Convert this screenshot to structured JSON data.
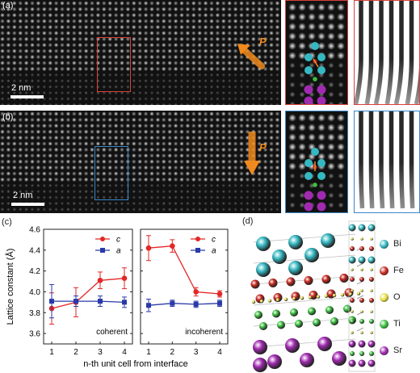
{
  "panels": {
    "a": {
      "label": "(a)",
      "scale_label": "2 nm",
      "polarization_label": "P"
    },
    "b": {
      "label": "(b)",
      "scale_label": "2 nm",
      "polarization_label": "P"
    },
    "c": {
      "label": "(c)"
    },
    "d": {
      "label": "(d)"
    }
  },
  "colors": {
    "red_box": "#d9413a",
    "blue_box": "#3a86c8",
    "series_c": "#e32626",
    "series_a": "#2a3aa8",
    "arrow": "#f08a1e",
    "Bi": "#35b8c2",
    "Fe": "#c8281e",
    "O": "#e8e04a",
    "Ti": "#3cc040",
    "Sr": "#a02ab0"
  },
  "legend_atoms": [
    {
      "name": "Bi",
      "color": "#35b8c2"
    },
    {
      "name": "Fe",
      "color": "#c8281e"
    },
    {
      "name": "O",
      "color": "#e8e04a"
    },
    {
      "name": "Ti",
      "color": "#3cc040"
    },
    {
      "name": "Sr",
      "color": "#a02ab0"
    }
  ],
  "chart_data": [
    {
      "type": "line",
      "annotation": "coherent",
      "ylabel": "Lattice constant (Å)",
      "xlabel": "n-th unit cell from interface",
      "x": [
        1,
        2,
        3,
        4
      ],
      "ylim": [
        3.5,
        4.6
      ],
      "yticks": [
        3.6,
        3.8,
        4.0,
        4.2,
        4.4,
        4.6
      ],
      "series": [
        {
          "name": "c",
          "values": [
            3.84,
            3.9,
            4.11,
            4.13
          ],
          "errors": [
            0.15,
            0.14,
            0.08,
            0.1
          ],
          "color": "#e32626",
          "marker": "circle"
        },
        {
          "name": "a",
          "values": [
            3.91,
            3.91,
            3.91,
            3.9
          ],
          "errors": [
            0.16,
            0.05,
            0.05,
            0.05
          ],
          "color": "#2a3aa8",
          "marker": "square"
        }
      ]
    },
    {
      "type": "line",
      "annotation": "incoherent",
      "x": [
        1,
        2,
        3,
        4
      ],
      "ylim": [
        3.5,
        4.6
      ],
      "series": [
        {
          "name": "c",
          "values": [
            4.42,
            4.44,
            4.0,
            3.98
          ],
          "errors": [
            0.12,
            0.06,
            0.04,
            0.03
          ],
          "color": "#e32626",
          "marker": "circle"
        },
        {
          "name": "a",
          "values": [
            3.87,
            3.89,
            3.88,
            3.89
          ],
          "errors": [
            0.06,
            0.03,
            0.03,
            0.03
          ],
          "color": "#2a3aa8",
          "marker": "square"
        }
      ]
    }
  ]
}
